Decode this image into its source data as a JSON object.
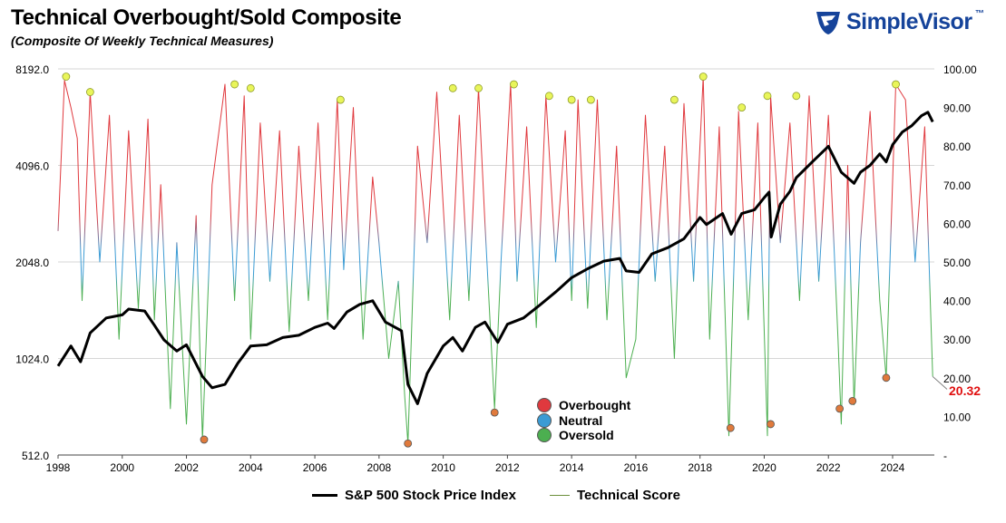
{
  "header": {
    "title": "Technical Overbought/Sold Composite",
    "subtitle": "(Composite Of Weekly Technical Measures)"
  },
  "brand": {
    "name": "SimpleVisor",
    "trademark": "™",
    "icon": "eagle-shield-icon",
    "color": "#15439a"
  },
  "colors": {
    "overbought": "#e0393e",
    "neutral": "#3b9bd4",
    "oversold": "#4caf50",
    "spx": "#000000",
    "peak_marker": "#e9f55a",
    "trough_marker": "#e07a3c",
    "callout": "#e01010"
  },
  "chart_data": {
    "type": "line",
    "title": "Technical Overbought/Sold Composite",
    "x_range": [
      1998,
      2025.3
    ],
    "x_ticks": [
      "1998",
      "2000",
      "2002",
      "2004",
      "2006",
      "2008",
      "2010",
      "2012",
      "2014",
      "2016",
      "2018",
      "2020",
      "2022",
      "2024"
    ],
    "left_axis": {
      "scale": "log2",
      "range": [
        512,
        8192
      ],
      "tick_labels": [
        "8192.0",
        "4096.0",
        "2048.0",
        "1024.0",
        "512.0"
      ],
      "tick_values": [
        8192,
        4096,
        2048,
        1024,
        512
      ]
    },
    "right_axis": {
      "range": [
        0,
        100
      ],
      "tick_labels": [
        "100.00",
        "90.00",
        "80.00",
        "70.00",
        "60.00",
        "50.00",
        "40.00",
        "30.00",
        "20.00",
        "10.00",
        "-"
      ],
      "tick_values": [
        100,
        90,
        80,
        70,
        60,
        50,
        40,
        30,
        20,
        10,
        0
      ]
    },
    "grid": true,
    "series": [
      {
        "name": "S&P 500 Stock Price Index",
        "axis": "left",
        "x": [
          1998.0,
          1998.4,
          1998.7,
          1999.0,
          1999.5,
          2000.0,
          2000.2,
          2000.7,
          2001.0,
          2001.3,
          2001.7,
          2002.0,
          2002.5,
          2002.8,
          2003.2,
          2003.6,
          2004.0,
          2004.5,
          2005.0,
          2005.5,
          2006.0,
          2006.4,
          2006.6,
          2007.0,
          2007.4,
          2007.8,
          2008.2,
          2008.7,
          2008.9,
          2009.2,
          2009.5,
          2010.0,
          2010.3,
          2010.6,
          2011.0,
          2011.3,
          2011.7,
          2012.0,
          2012.5,
          2013.0,
          2013.5,
          2014.0,
          2014.5,
          2015.0,
          2015.5,
          2015.7,
          2016.1,
          2016.5,
          2017.0,
          2017.5,
          2018.0,
          2018.2,
          2018.7,
          2018.97,
          2019.3,
          2019.7,
          2020.0,
          2020.15,
          2020.22,
          2020.5,
          2020.8,
          2021.0,
          2021.5,
          2022.0,
          2022.4,
          2022.8,
          2023.0,
          2023.3,
          2023.6,
          2023.8,
          2024.0,
          2024.3,
          2024.6,
          2024.9,
          2025.1,
          2025.25
        ],
        "values": [
          970,
          1120,
          1000,
          1230,
          1370,
          1400,
          1460,
          1440,
          1300,
          1170,
          1080,
          1130,
          900,
          830,
          850,
          990,
          1120,
          1130,
          1190,
          1210,
          1280,
          1320,
          1270,
          1430,
          1510,
          1550,
          1330,
          1250,
          850,
          740,
          920,
          1120,
          1190,
          1080,
          1280,
          1330,
          1150,
          1310,
          1370,
          1500,
          1650,
          1830,
          1950,
          2060,
          2100,
          1920,
          1900,
          2170,
          2270,
          2420,
          2820,
          2680,
          2900,
          2500,
          2900,
          2980,
          3250,
          3380,
          2450,
          3100,
          3400,
          3750,
          4200,
          4700,
          3900,
          3600,
          3900,
          4100,
          4450,
          4200,
          4750,
          5200,
          5450,
          5850,
          6000,
          5600
        ]
      },
      {
        "name": "Technical Score",
        "axis": "right",
        "x": [
          1998.0,
          1998.2,
          1998.4,
          1998.6,
          1998.75,
          1999.0,
          1999.3,
          1999.6,
          1999.9,
          2000.2,
          2000.5,
          2000.8,
          2001.0,
          2001.2,
          2001.5,
          2001.7,
          2002.0,
          2002.3,
          2002.5,
          2002.8,
          2003.2,
          2003.5,
          2003.8,
          2004.0,
          2004.3,
          2004.6,
          2004.9,
          2005.2,
          2005.5,
          2005.8,
          2006.1,
          2006.4,
          2006.7,
          2006.9,
          2007.2,
          2007.5,
          2007.8,
          2008.0,
          2008.3,
          2008.6,
          2008.8,
          2008.9,
          2009.2,
          2009.5,
          2009.8,
          2010.2,
          2010.5,
          2010.8,
          2011.1,
          2011.3,
          2011.6,
          2011.8,
          2012.1,
          2012.3,
          2012.6,
          2012.9,
          2013.2,
          2013.5,
          2013.8,
          2014.0,
          2014.2,
          2014.5,
          2014.8,
          2015.1,
          2015.4,
          2015.7,
          2016.0,
          2016.3,
          2016.6,
          2016.9,
          2017.2,
          2017.5,
          2017.8,
          2018.1,
          2018.3,
          2018.6,
          2018.9,
          2019.2,
          2019.5,
          2019.8,
          2020.1,
          2020.2,
          2020.5,
          2020.8,
          2021.1,
          2021.4,
          2021.7,
          2022.0,
          2022.3,
          2022.4,
          2022.6,
          2022.8,
          2023.0,
          2023.3,
          2023.6,
          2023.8,
          2024.1,
          2024.4,
          2024.7,
          2025.0,
          2025.25
        ],
        "values": [
          58,
          97,
          90,
          82,
          40,
          94,
          50,
          88,
          30,
          84,
          38,
          87,
          35,
          70,
          12,
          55,
          8,
          62,
          4,
          70,
          96,
          40,
          93,
          30,
          86,
          45,
          84,
          32,
          80,
          40,
          86,
          35,
          92,
          48,
          90,
          30,
          72,
          55,
          25,
          45,
          15,
          3,
          80,
          55,
          94,
          35,
          88,
          40,
          95,
          60,
          12,
          50,
          96,
          45,
          85,
          33,
          93,
          50,
          84,
          40,
          92,
          38,
          92,
          35,
          80,
          20,
          30,
          88,
          45,
          80,
          25,
          91,
          45,
          98,
          30,
          85,
          5,
          89,
          35,
          86,
          5,
          93,
          55,
          86,
          40,
          93,
          45,
          88,
          30,
          8,
          75,
          13,
          55,
          89,
          40,
          20,
          96,
          92,
          50,
          85,
          20.32
        ]
      }
    ],
    "peak_markers": {
      "x": [
        1998.25,
        1999.0,
        2003.5,
        2004.0,
        2006.8,
        2010.3,
        2011.1,
        2012.2,
        2013.3,
        2014.0,
        2014.6,
        2017.2,
        2018.1,
        2019.3,
        2020.1,
        2021.0,
        2024.1
      ],
      "values": [
        98,
        94,
        96,
        95,
        92,
        95,
        95,
        96,
        93,
        92,
        92,
        92,
        98,
        90,
        93,
        93,
        96
      ]
    },
    "trough_markers": {
      "x": [
        2002.55,
        2008.9,
        2011.6,
        2018.95,
        2020.2,
        2022.35,
        2022.75,
        2023.8
      ],
      "values": [
        4,
        3,
        11,
        7,
        8,
        12,
        14,
        20
      ]
    },
    "annotations": [
      {
        "text": "20.32",
        "x": 2025.25,
        "value": 20.32
      }
    ],
    "legend": {
      "bottom": [
        "S&P 500 Stock Price Index",
        "Technical Score"
      ],
      "zones": [
        "Overbought",
        "Neutral",
        "Oversold"
      ],
      "placement": "bottom-center"
    }
  }
}
